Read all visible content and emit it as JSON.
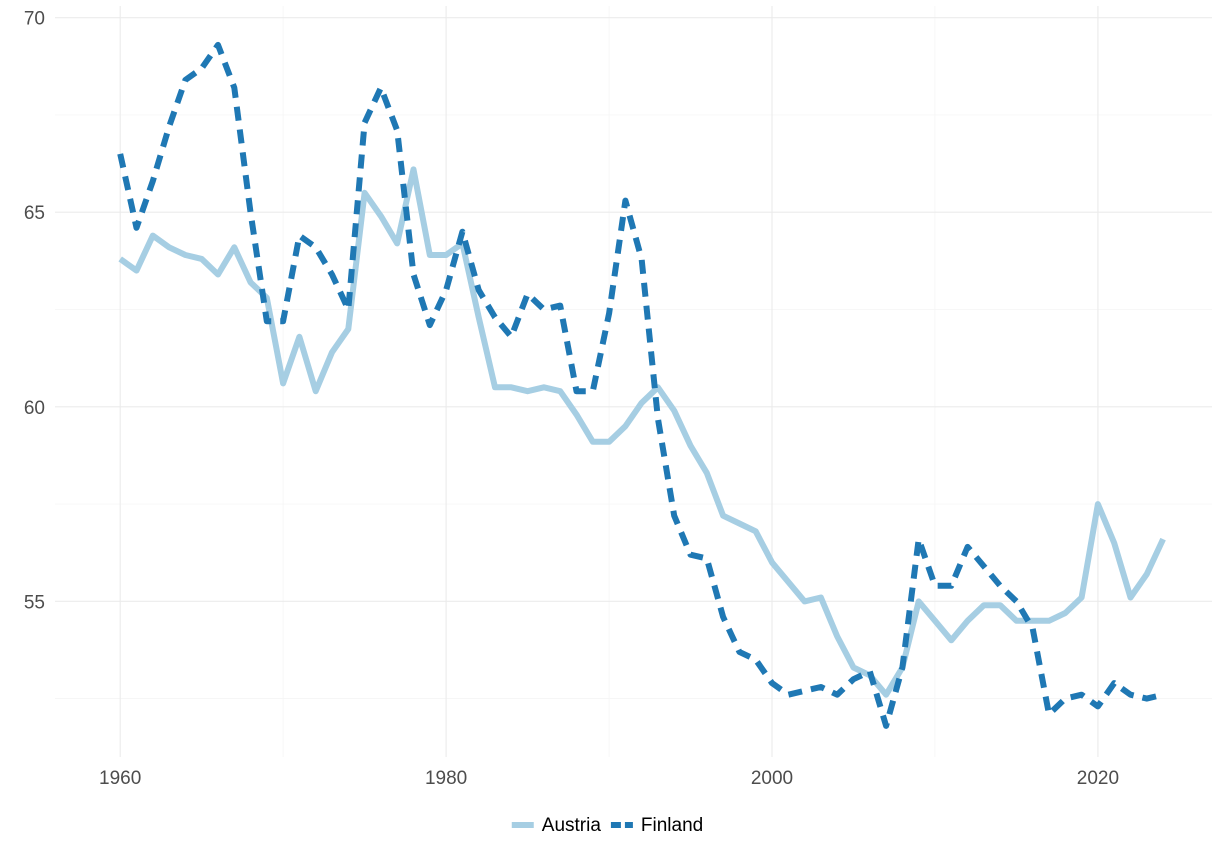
{
  "chart_data": {
    "type": "line",
    "title": "",
    "xlabel": "",
    "ylabel": "",
    "xlim": [
      1956,
      2027
    ],
    "ylim": [
      51.0,
      70.3
    ],
    "x_ticks": [
      1960,
      1980,
      2000,
      2020
    ],
    "x_tick_labels": [
      "1960",
      "1980",
      "2000",
      "2020"
    ],
    "x_minor_ticks": [
      1970,
      1990,
      2010
    ],
    "y_ticks": [
      55,
      60,
      65,
      70
    ],
    "y_tick_labels": [
      "55",
      "60",
      "65",
      "70"
    ],
    "y_minor_ticks": [
      52.5,
      57.5,
      62.5,
      67.5
    ],
    "grid": true,
    "legend_position": "bottom",
    "series": [
      {
        "name": "Austria",
        "color": "#a6cee3",
        "line_style": "solid",
        "x": [
          1960,
          1961,
          1962,
          1963,
          1964,
          1965,
          1966,
          1967,
          1968,
          1969,
          1970,
          1971,
          1972,
          1973,
          1974,
          1975,
          1976,
          1977,
          1978,
          1979,
          1980,
          1981,
          1982,
          1983,
          1984,
          1985,
          1986,
          1987,
          1988,
          1989,
          1990,
          1991,
          1992,
          1993,
          1994,
          1995,
          1996,
          1997,
          1998,
          1999,
          2000,
          2001,
          2002,
          2003,
          2004,
          2005,
          2006,
          2007,
          2008,
          2009,
          2010,
          2011,
          2012,
          2013,
          2014,
          2015,
          2016,
          2017,
          2018,
          2019,
          2020,
          2021,
          2022,
          2023,
          2024
        ],
        "values": [
          63.8,
          63.5,
          64.4,
          64.1,
          63.9,
          63.8,
          63.4,
          64.1,
          63.2,
          62.8,
          60.6,
          61.8,
          60.4,
          61.4,
          62.0,
          65.5,
          64.9,
          64.2,
          66.1,
          63.9,
          63.9,
          64.2,
          62.3,
          60.5,
          60.5,
          60.4,
          60.5,
          60.4,
          59.8,
          59.1,
          59.1,
          59.5,
          60.1,
          60.5,
          59.9,
          59.0,
          58.3,
          57.2,
          57.0,
          56.8,
          56.0,
          55.5,
          55.0,
          55.1,
          54.1,
          53.3,
          53.1,
          52.6,
          53.3,
          55.0,
          54.5,
          54.0,
          54.5,
          54.9,
          54.9,
          54.5,
          54.5,
          54.5,
          54.7,
          55.1,
          57.5,
          56.5,
          55.1,
          55.7,
          56.6
        ]
      },
      {
        "name": "Finland",
        "color": "#1f78b4",
        "line_style": "dashed",
        "x": [
          1960,
          1961,
          1962,
          1963,
          1964,
          1965,
          1966,
          1967,
          1968,
          1969,
          1970,
          1971,
          1972,
          1973,
          1974,
          1975,
          1976,
          1977,
          1978,
          1979,
          1980,
          1981,
          1982,
          1983,
          1984,
          1985,
          1986,
          1987,
          1988,
          1989,
          1990,
          1991,
          1992,
          1993,
          1994,
          1995,
          1996,
          1997,
          1998,
          1999,
          2000,
          2001,
          2002,
          2003,
          2004,
          2005,
          2006,
          2007,
          2008,
          2009,
          2010,
          2011,
          2012,
          2013,
          2014,
          2015,
          2016,
          2017,
          2018,
          2019,
          2020,
          2021,
          2022,
          2023,
          2024
        ],
        "values": [
          66.5,
          64.6,
          65.8,
          67.2,
          68.4,
          68.7,
          69.3,
          68.2,
          65.0,
          62.2,
          62.2,
          64.4,
          64.1,
          63.4,
          62.5,
          67.3,
          68.2,
          67.1,
          63.4,
          62.1,
          63.0,
          64.5,
          63.0,
          62.3,
          61.8,
          62.9,
          62.5,
          62.6,
          60.4,
          60.4,
          62.4,
          65.3,
          63.8,
          59.7,
          57.2,
          56.2,
          56.1,
          54.6,
          53.7,
          53.5,
          52.9,
          52.6,
          52.7,
          52.8,
          52.6,
          53.0,
          53.2,
          51.8,
          53.3,
          56.6,
          55.4,
          55.4,
          56.4,
          55.9,
          55.4,
          55.0,
          54.3,
          52.1,
          52.5,
          52.6,
          52.3,
          52.9,
          52.6,
          52.5,
          52.6
        ]
      }
    ]
  }
}
